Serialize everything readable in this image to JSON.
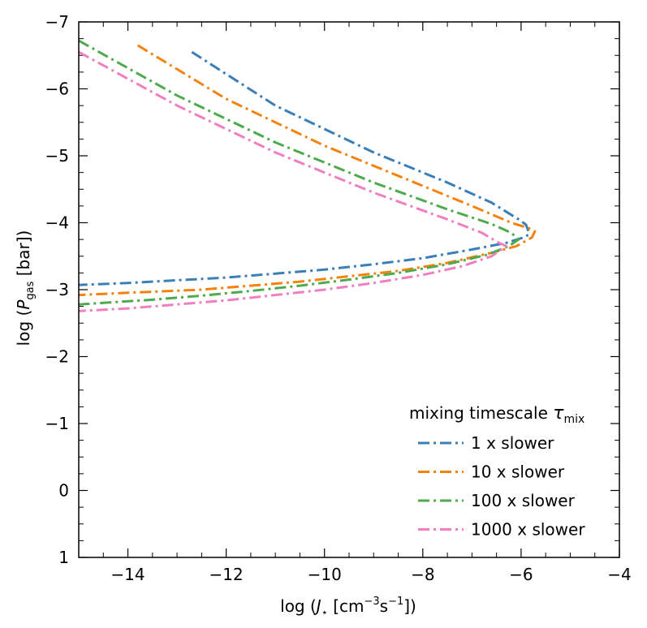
{
  "chart_data": {
    "type": "line",
    "title": "",
    "xlabel": "log (J⋆ [cm⁻³s⁻¹])",
    "ylabel": "log (P_gas [bar])",
    "xlabel_parts": {
      "prefix": "log (",
      "sym": "J",
      "sub": "⋆",
      "mid": " [cm",
      "sup1": "−3",
      "mid2": "s",
      "sup2": "−1",
      "suffix": "])"
    },
    "ylabel_parts": {
      "prefix": "log (",
      "sym": "P",
      "sub": "gas",
      "suffix": " [bar])"
    },
    "xlim": [
      -15,
      -4
    ],
    "ylim": [
      1,
      -7
    ],
    "y_inverted": true,
    "xticks": [
      -14,
      -12,
      -10,
      -8,
      -6,
      -4
    ],
    "xtick_labels": [
      "−14",
      "−12",
      "−10",
      "−8",
      "−6",
      "−4"
    ],
    "yticks": [
      -7,
      -6,
      -5,
      -4,
      -3,
      -2,
      -1,
      0,
      1
    ],
    "ytick_labels": [
      "−7",
      "−6",
      "−5",
      "−4",
      "−3",
      "−2",
      "−1",
      "0",
      "1"
    ],
    "grid": false,
    "legend": {
      "title_prefix": "mixing timescale ",
      "title_symbol": "τ",
      "title_sub": "mix",
      "placement": "lower-right"
    },
    "line_style": "dash-dot",
    "series": [
      {
        "name": "1 x slower",
        "color": "#3a7fb8",
        "points": [
          [
            -12.7,
            -6.55
          ],
          [
            -11,
            -5.75
          ],
          [
            -9,
            -5.05
          ],
          [
            -7.5,
            -4.6
          ],
          [
            -6.6,
            -4.3
          ],
          [
            -6.05,
            -4.05
          ],
          [
            -5.9,
            -3.97
          ],
          [
            -5.85,
            -3.87
          ],
          [
            -5.85,
            -3.82
          ],
          [
            -5.95,
            -3.78
          ],
          [
            -6.3,
            -3.7
          ],
          [
            -7,
            -3.6
          ],
          [
            -8,
            -3.47
          ],
          [
            -9,
            -3.38
          ],
          [
            -10,
            -3.3
          ],
          [
            -11,
            -3.24
          ],
          [
            -12,
            -3.18
          ],
          [
            -13,
            -3.14
          ],
          [
            -14,
            -3.1
          ],
          [
            -15,
            -3.07
          ]
        ]
      },
      {
        "name": "10 x slower",
        "color": "#f5820d",
        "points": [
          [
            -13.8,
            -6.65
          ],
          [
            -12,
            -5.85
          ],
          [
            -10,
            -5.15
          ],
          [
            -8.5,
            -4.7
          ],
          [
            -7,
            -4.25
          ],
          [
            -6.2,
            -4.0
          ],
          [
            -5.85,
            -3.92
          ],
          [
            -5.72,
            -3.87
          ],
          [
            -5.78,
            -3.78
          ],
          [
            -6.1,
            -3.65
          ],
          [
            -6.6,
            -3.55
          ],
          [
            -7.5,
            -3.4
          ],
          [
            -8.5,
            -3.28
          ],
          [
            -9.5,
            -3.2
          ],
          [
            -10.5,
            -3.12
          ],
          [
            -11.5,
            -3.06
          ],
          [
            -12.5,
            -3.0
          ],
          [
            -13.5,
            -2.97
          ],
          [
            -15,
            -2.92
          ]
        ]
      },
      {
        "name": "100 x slower",
        "color": "#4daa4d",
        "points": [
          [
            -15,
            -6.72
          ],
          [
            -13,
            -5.9
          ],
          [
            -11,
            -5.2
          ],
          [
            -9,
            -4.6
          ],
          [
            -7.5,
            -4.2
          ],
          [
            -6.6,
            -3.98
          ],
          [
            -6.2,
            -3.85
          ],
          [
            -6.05,
            -3.75
          ],
          [
            -6.25,
            -3.65
          ],
          [
            -6.7,
            -3.52
          ],
          [
            -7.5,
            -3.38
          ],
          [
            -8.5,
            -3.25
          ],
          [
            -9.5,
            -3.15
          ],
          [
            -10.5,
            -3.06
          ],
          [
            -11.5,
            -2.98
          ],
          [
            -12.5,
            -2.91
          ],
          [
            -13.5,
            -2.85
          ],
          [
            -15,
            -2.78
          ]
        ]
      },
      {
        "name": "1000 x slower",
        "color": "#f07fc0",
        "points": [
          [
            -15,
            -6.55
          ],
          [
            -13,
            -5.75
          ],
          [
            -11,
            -5.05
          ],
          [
            -9,
            -4.45
          ],
          [
            -7.5,
            -4.05
          ],
          [
            -6.8,
            -3.85
          ],
          [
            -6.45,
            -3.7
          ],
          [
            -6.3,
            -3.65
          ],
          [
            -6.6,
            -3.5
          ],
          [
            -7.2,
            -3.35
          ],
          [
            -8,
            -3.22
          ],
          [
            -9,
            -3.1
          ],
          [
            -10,
            -3.0
          ],
          [
            -11,
            -2.92
          ],
          [
            -12,
            -2.84
          ],
          [
            -13,
            -2.78
          ],
          [
            -14,
            -2.72
          ],
          [
            -15,
            -2.68
          ]
        ]
      }
    ]
  }
}
